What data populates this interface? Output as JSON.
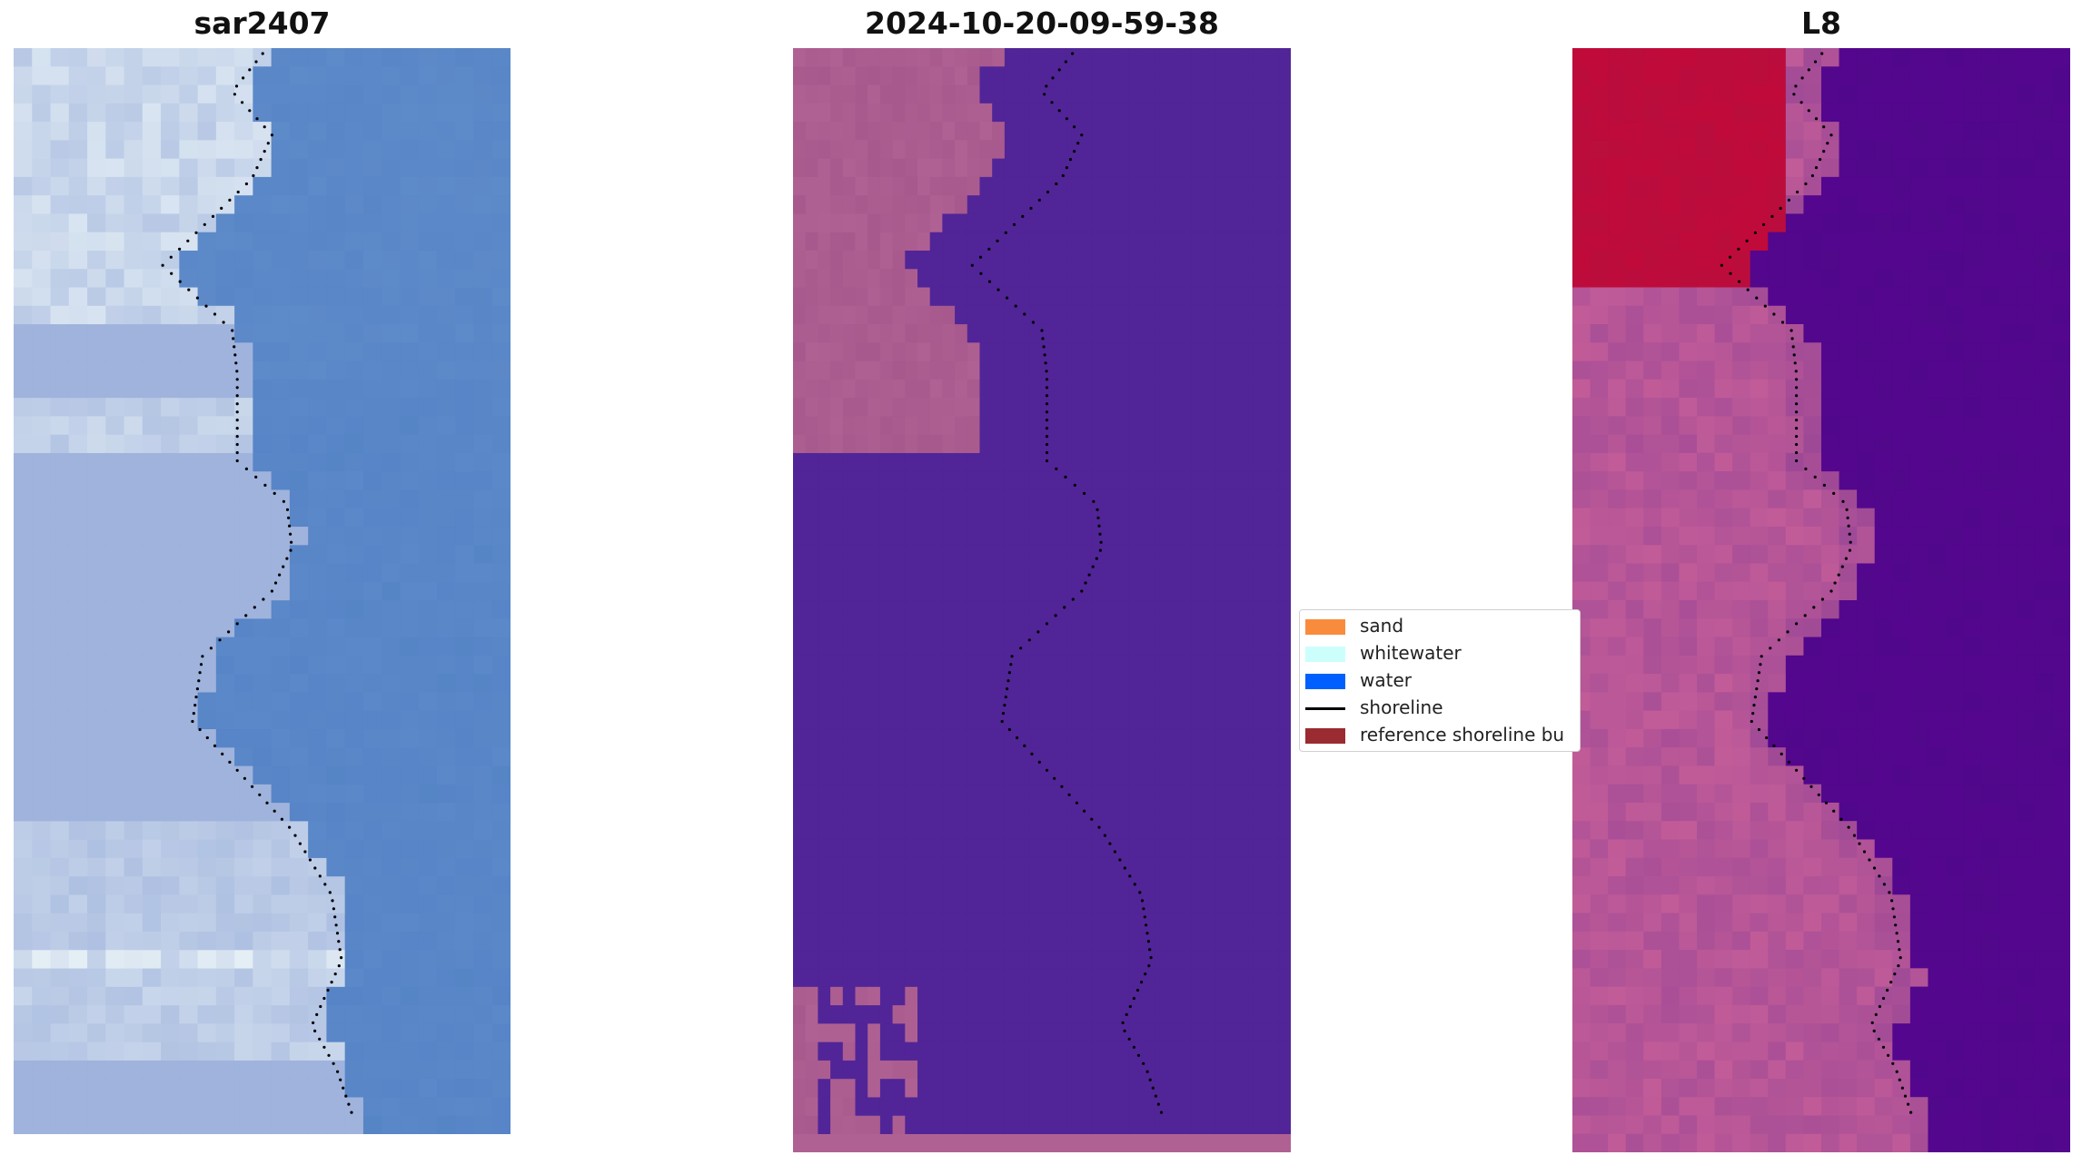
{
  "panels": [
    {
      "id": "rgb",
      "title": "sar2407"
    },
    {
      "id": "classified",
      "title": "2024-10-20-09-59-38"
    },
    {
      "id": "index",
      "title": "L8"
    }
  ],
  "legend": {
    "items": [
      {
        "label": "sand",
        "color": "#f98c3c",
        "kind": "patch"
      },
      {
        "label": "whitewater",
        "color": "#ccfffc",
        "kind": "patch"
      },
      {
        "label": "water",
        "color": "#0060ff",
        "kind": "patch"
      },
      {
        "label": "shoreline",
        "color": "#000000",
        "kind": "line"
      },
      {
        "label": "reference shoreline bu",
        "color": "#9a2b30",
        "kind": "patch"
      }
    ]
  },
  "colors": {
    "rgb_water": "#5b88c8",
    "rgb_land": "#9fb3dc",
    "rgb_whitewater": "#e4eef5",
    "class_water": "#512597",
    "class_land": "#b06193",
    "index_water": "#55068f",
    "index_land": "#c25c98",
    "index_hot": "#c00a3a",
    "shoreline": "#000000"
  }
}
